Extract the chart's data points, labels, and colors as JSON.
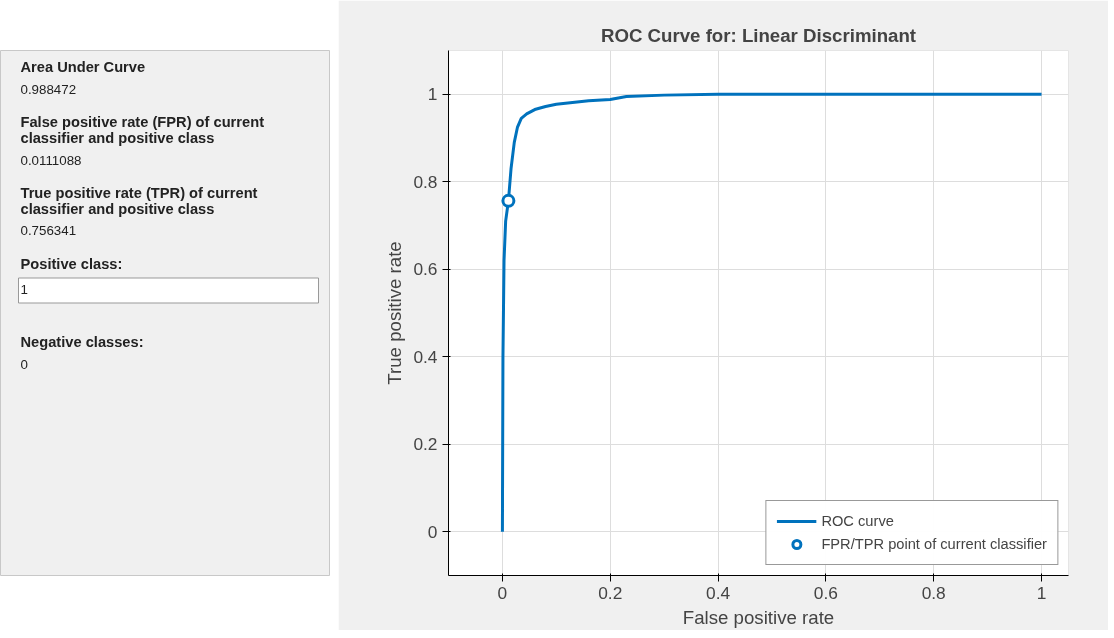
{
  "chart_data": [
    {
      "type": "other",
      "annotations": [
        "Area Under Curve",
        "0.988472",
        "False positive rate (FPR) of current classifier and positive class",
        "0.0111088",
        "True positive rate (TPR) of current classifier and positive class",
        "0.756341",
        "Positive class:",
        "1",
        "Negative classes:",
        "0"
      ]
    },
    {
      "type": "line",
      "title": "ROC Curve for: Linear Discriminant",
      "xlabel": "False positive rate",
      "ylabel": "True positive rate",
      "xlim": [
        -0.1,
        1.05
      ],
      "ylim": [
        -0.1,
        1.1
      ],
      "xticks": [
        0,
        0.2,
        0.4,
        0.6,
        0.8,
        1
      ],
      "yticks": [
        0,
        0.2,
        0.4,
        0.6,
        0.8,
        1
      ],
      "grid": true,
      "legend": "bottom right",
      "series": [
        {
          "name": "ROC curve",
          "type": "line",
          "color": "#0072bd",
          "marker": "none",
          "x": [
            0,
            0.001,
            0.003,
            0.006,
            0.0111,
            0.016,
            0.022,
            0.028,
            0.035,
            0.045,
            0.06,
            0.08,
            0.1,
            0.13,
            0.16,
            0.2,
            0.23,
            0.3,
            0.4,
            1
          ],
          "values": [
            0,
            0.4,
            0.62,
            0.71,
            0.756,
            0.83,
            0.89,
            0.925,
            0.945,
            0.955,
            0.965,
            0.972,
            0.977,
            0.981,
            0.985,
            0.988,
            0.995,
            0.998,
            1,
            1
          ]
        },
        {
          "name": "FPR/TPR point of current classifier",
          "type": "scatter",
          "color": "#0072bd",
          "marker": "circle",
          "x": [
            0.0111088
          ],
          "values": [
            0.756341
          ]
        }
      ]
    }
  ]
}
